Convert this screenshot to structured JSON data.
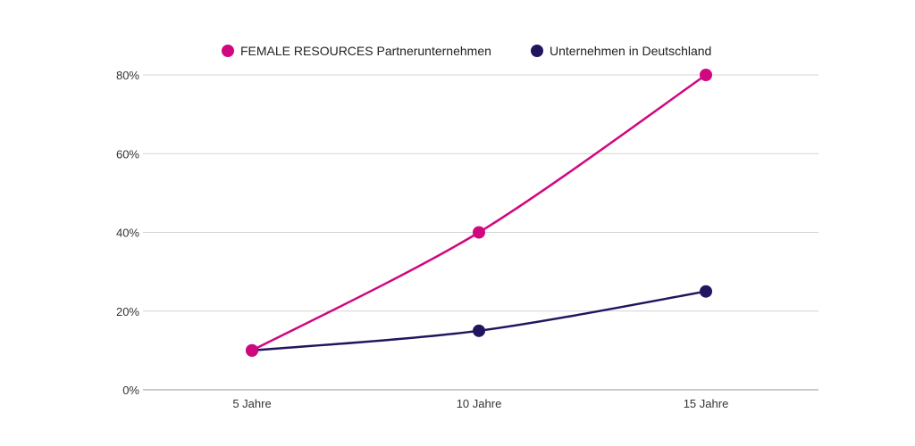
{
  "chart_data": {
    "type": "line",
    "title": "",
    "xlabel": "",
    "ylabel": "",
    "categories": [
      "5 Jahre",
      "10 Jahre",
      "15 Jahre"
    ],
    "ylim": [
      0,
      80
    ],
    "yticks": [
      0,
      20,
      40,
      60,
      80
    ],
    "ytick_labels": [
      "0%",
      "20%",
      "40%",
      "60%",
      "80%"
    ],
    "grid": true,
    "legend_position": "top-center",
    "series": [
      {
        "name": "FEMALE RESOURCES Partnerunternehmen",
        "color": "#d1077f",
        "values": [
          10,
          40,
          80
        ]
      },
      {
        "name": "Unternehmen in Deutschland",
        "color": "#22145f",
        "values": [
          10,
          15,
          25
        ]
      }
    ]
  }
}
